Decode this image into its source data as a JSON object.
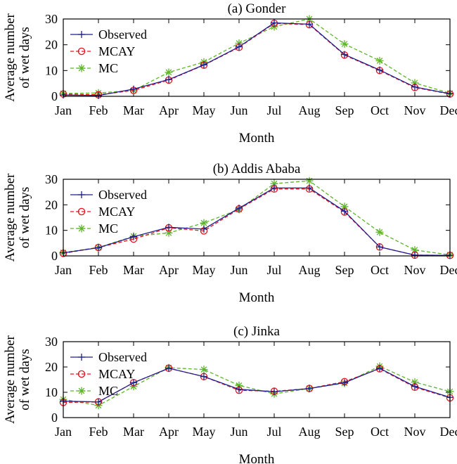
{
  "chart_data": [
    {
      "type": "line",
      "title": "(a) Gonder",
      "xlabel": "Month",
      "ylabel": [
        "Average number",
        "of wet days"
      ],
      "categories": [
        "Jan",
        "Feb",
        "Mar",
        "Apr",
        "May",
        "Jun",
        "Jul",
        "Aug",
        "Sep",
        "Oct",
        "Nov",
        "Dec"
      ],
      "ylim": [
        0,
        30
      ],
      "yticks": [
        0,
        10,
        20,
        30
      ],
      "legend_position": "top-left",
      "series": [
        {
          "name": "Observed",
          "color": "#1f1f8f",
          "marker": "plus",
          "dashed": false,
          "values": [
            0.5,
            0.3,
            2.8,
            6.5,
            12.2,
            19.2,
            28.5,
            28.0,
            16.2,
            10.2,
            3.6,
            1.0
          ]
        },
        {
          "name": "MCAY",
          "color": "#e8141e",
          "marker": "circle",
          "dashed": true,
          "values": [
            0.9,
            0.6,
            2.3,
            6.3,
            12.1,
            19.0,
            28.3,
            27.8,
            16.0,
            10.0,
            3.4,
            0.9
          ]
        },
        {
          "name": "MC",
          "color": "#5eb52a",
          "marker": "star",
          "dashed": true,
          "values": [
            1.1,
            1.3,
            2.3,
            9.3,
            13.3,
            20.6,
            27.0,
            30.0,
            20.3,
            13.8,
            5.2,
            1.2
          ]
        }
      ]
    },
    {
      "type": "line",
      "title": "(b) Addis Ababa",
      "xlabel": "Month",
      "ylabel": [
        "Average number",
        "of wet days"
      ],
      "categories": [
        "Jan",
        "Feb",
        "Mar",
        "Apr",
        "May",
        "Jun",
        "Jul",
        "Aug",
        "Sep",
        "Oct",
        "Nov",
        "Dec"
      ],
      "ylim": [
        0,
        30
      ],
      "yticks": [
        0,
        10,
        20,
        30
      ],
      "legend_position": "top-left",
      "series": [
        {
          "name": "Observed",
          "color": "#1f1f8f",
          "marker": "plus",
          "dashed": false,
          "values": [
            1.2,
            3.2,
            7.5,
            11.2,
            10.5,
            18.7,
            26.6,
            26.6,
            17.5,
            3.5,
            0.3,
            0.2
          ]
        },
        {
          "name": "MCAY",
          "color": "#e8141e",
          "marker": "circle",
          "dashed": true,
          "values": [
            1.0,
            3.3,
            6.6,
            11.0,
            9.8,
            18.4,
            26.2,
            26.2,
            17.2,
            3.5,
            0.3,
            0.2
          ]
        },
        {
          "name": "MC",
          "color": "#5eb52a",
          "marker": "star",
          "dashed": true,
          "values": [
            1.3,
            3.3,
            7.7,
            9.0,
            12.9,
            18.2,
            28.3,
            29.4,
            19.3,
            9.3,
            2.3,
            0.4
          ]
        }
      ]
    },
    {
      "type": "line",
      "title": "(c) Jinka",
      "xlabel": "Month",
      "ylabel": [
        "Average number",
        "of wet days"
      ],
      "categories": [
        "Jan",
        "Feb",
        "Mar",
        "Apr",
        "May",
        "Jun",
        "Jul",
        "Aug",
        "Sep",
        "Oct",
        "Nov",
        "Dec"
      ],
      "ylim": [
        0,
        30
      ],
      "yticks": [
        0,
        10,
        20,
        30
      ],
      "legend_position": "top-left",
      "series": [
        {
          "name": "Observed",
          "color": "#1f1f8f",
          "marker": "plus",
          "dashed": false,
          "values": [
            6.5,
            6.2,
            13.8,
            19.5,
            16.2,
            11.2,
            10.2,
            11.5,
            13.8,
            19.5,
            12.3,
            8.0
          ]
        },
        {
          "name": "MCAY",
          "color": "#e8141e",
          "marker": "circle",
          "dashed": true,
          "values": [
            6.0,
            6.2,
            13.8,
            19.5,
            16.2,
            10.8,
            10.4,
            11.5,
            14.2,
            19.3,
            12.0,
            7.8
          ]
        },
        {
          "name": "MC",
          "color": "#5eb52a",
          "marker": "star",
          "dashed": true,
          "values": [
            7.2,
            4.8,
            12.3,
            19.7,
            19.0,
            12.7,
            9.4,
            11.5,
            13.6,
            20.3,
            14.0,
            10.3
          ]
        }
      ]
    }
  ]
}
